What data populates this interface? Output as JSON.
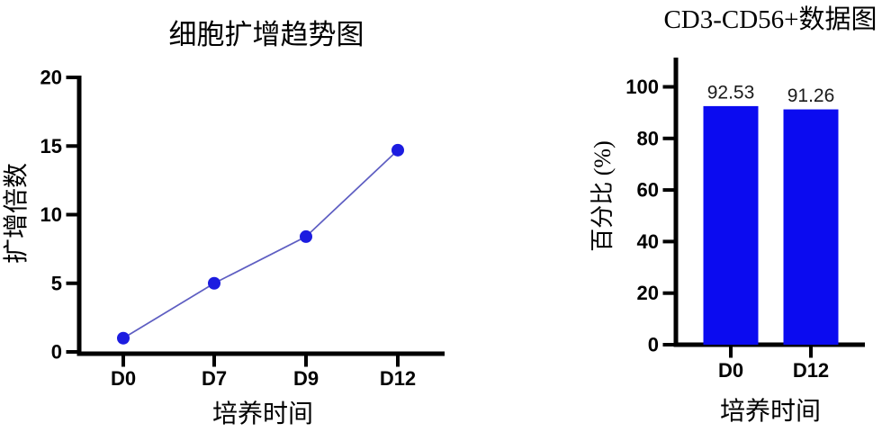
{
  "figure": {
    "background": "#ffffff",
    "text_color": "#000000"
  },
  "chart_data": [
    {
      "type": "line",
      "title": "细胞扩增趋势图",
      "xlabel": "培养时间",
      "ylabel": "扩增倍数",
      "categories": [
        "D0",
        "D7",
        "D9",
        "D12"
      ],
      "values": [
        1.0,
        5.0,
        8.4,
        14.7
      ],
      "yticks": [
        0,
        5,
        10,
        15,
        20
      ],
      "ylim": [
        0,
        20
      ],
      "grid": false,
      "legend": "none",
      "line_color": "#5e5ec2",
      "marker_color": "#1c1ce0",
      "marker": "circle"
    },
    {
      "type": "bar",
      "title": "CD3-CD56+数据图",
      "xlabel": "培养时间",
      "ylabel": "百分比 (%)",
      "categories": [
        "D0",
        "D12"
      ],
      "values": [
        92.53,
        91.26
      ],
      "value_labels": [
        "92.53",
        "91.26"
      ],
      "yticks": [
        0,
        20,
        40,
        60,
        80,
        100
      ],
      "ylim": [
        0,
        112
      ],
      "grid": false,
      "legend": "none",
      "bar_color": "#0b0bf0"
    }
  ]
}
